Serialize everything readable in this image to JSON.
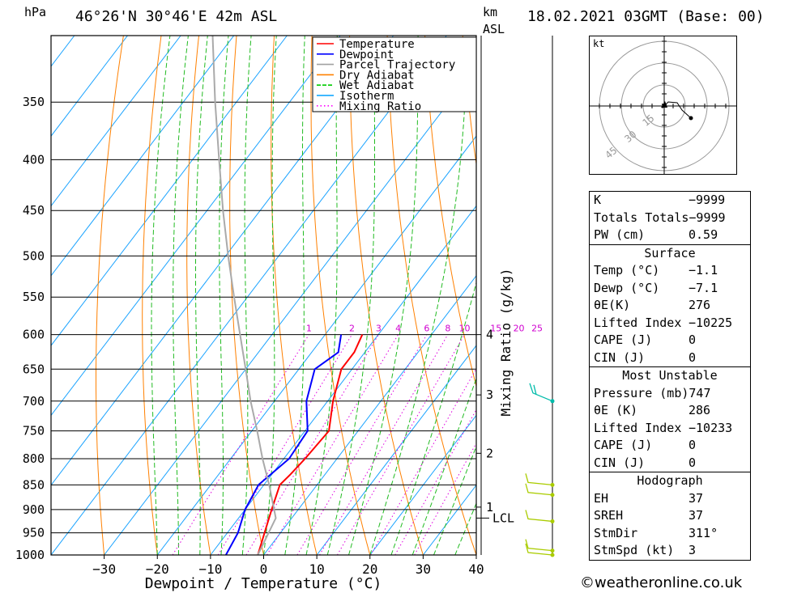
{
  "header": {
    "location": "46°26'N  30°46'E  42m  ASL",
    "datetime": "18.02.2021  03GMT  (Base: 00)",
    "left_unit": "hPa",
    "km_label": "km",
    "asl_label": "ASL"
  },
  "chart_data": {
    "type": "line",
    "title": "",
    "xlabel": "Dewpoint / Temperature (°C)",
    "right_axis_label": "Mixing Ratio (g/kg)",
    "xlim": [
      -40,
      40
    ],
    "ylim": [
      1000,
      300
    ],
    "x_ticks": [
      -30,
      -20,
      -10,
      0,
      10,
      20,
      30,
      40
    ],
    "pressure_levels": [
      350,
      400,
      450,
      500,
      550,
      600,
      650,
      700,
      750,
      800,
      850,
      900,
      950,
      1000
    ],
    "km_ticks": [
      {
        "label": "4",
        "p": 600
      },
      {
        "label": "3",
        "p": 690
      },
      {
        "label": "2",
        "p": 790
      },
      {
        "label": "1",
        "p": 895
      }
    ],
    "lcl_label": "LCL",
    "lcl_pressure": 918,
    "mixing_ratio_labels": [
      "1",
      "2",
      "3",
      "4",
      "6",
      "8",
      "10",
      "15",
      "20",
      "25"
    ],
    "mixing_ratio_values": [
      1,
      2,
      3,
      4,
      6,
      8,
      10,
      15,
      20,
      25
    ],
    "legend": [
      {
        "name": "Temperature",
        "color": "#ff0000"
      },
      {
        "name": "Dewpoint",
        "color": "#0000ff"
      },
      {
        "name": "Parcel Trajectory",
        "color": "#a0a0a0"
      },
      {
        "name": "Dry Adiabat",
        "color": "#ff8000"
      },
      {
        "name": "Wet Adiabat",
        "color": "#00cc00"
      },
      {
        "name": "Isotherm",
        "color": "#00a0ff"
      },
      {
        "name": "Mixing Ratio",
        "color": "#ff00ff"
      }
    ],
    "series": [
      {
        "name": "Temperature",
        "points": [
          [
            1000,
            -1.1
          ],
          [
            950,
            -3
          ],
          [
            900,
            -5
          ],
          [
            850,
            -7
          ],
          [
            830,
            -6.5
          ],
          [
            800,
            -6
          ],
          [
            750,
            -5.5
          ],
          [
            700,
            -9
          ],
          [
            650,
            -12
          ],
          [
            625,
            -12
          ],
          [
            600,
            -13
          ]
        ]
      },
      {
        "name": "Dewpoint",
        "points": [
          [
            1000,
            -7.1
          ],
          [
            950,
            -8
          ],
          [
            900,
            -10
          ],
          [
            850,
            -11
          ],
          [
            800,
            -9
          ],
          [
            750,
            -9.5
          ],
          [
            700,
            -14
          ],
          [
            650,
            -17
          ],
          [
            625,
            -15
          ],
          [
            600,
            -17
          ]
        ]
      },
      {
        "name": "Parcel Trajectory",
        "points": [
          [
            1000,
            -1.1
          ],
          [
            918,
            -3
          ],
          [
            850,
            -9
          ],
          [
            800,
            -14
          ],
          [
            750,
            -19
          ],
          [
            700,
            -24.5
          ],
          [
            650,
            -30
          ],
          [
            600,
            -36
          ],
          [
            550,
            -42.5
          ],
          [
            500,
            -49.5
          ],
          [
            450,
            -57
          ],
          [
            400,
            -65
          ],
          [
            350,
            -74
          ],
          [
            300,
            -84
          ]
        ]
      }
    ],
    "wind_barbs": [
      {
        "p": 1000,
        "knots": 10
      },
      {
        "p": 990,
        "knots": 10
      },
      {
        "p": 925,
        "knots": 10
      },
      {
        "p": 870,
        "knots": 10
      },
      {
        "p": 850,
        "knots": 10
      },
      {
        "p": 700,
        "knots": 10
      }
    ]
  },
  "hodograph": {
    "unit_label": "kt",
    "ring_labels": [
      "15",
      "30",
      "45"
    ]
  },
  "table": {
    "top": [
      {
        "label": "K",
        "value": "-9999"
      },
      {
        "label": "Totals Totals",
        "value": "-9999"
      },
      {
        "label": "PW (cm)",
        "value": "0.59"
      }
    ],
    "surface": {
      "title": "Surface",
      "rows": [
        {
          "label": "Temp (°C)",
          "value": "-1.1"
        },
        {
          "label": "Dewp (°C)",
          "value": "-7.1"
        },
        {
          "label": "θE(K)",
          "value": "276"
        },
        {
          "label": "Lifted Index",
          "value": "-10225"
        },
        {
          "label": "CAPE (J)",
          "value": "0"
        },
        {
          "label": "CIN (J)",
          "value": "0"
        }
      ]
    },
    "most_unstable": {
      "title": "Most Unstable",
      "rows": [
        {
          "label": "Pressure (mb)",
          "value": "747"
        },
        {
          "label": "θE (K)",
          "value": "286"
        },
        {
          "label": "Lifted Index",
          "value": "-10233"
        },
        {
          "label": "CAPE (J)",
          "value": "0"
        },
        {
          "label": "CIN (J)",
          "value": "0"
        }
      ]
    },
    "hodograph": {
      "title": "Hodograph",
      "rows": [
        {
          "label": "EH",
          "value": "37"
        },
        {
          "label": "SREH",
          "value": "37"
        },
        {
          "label": "StmDir",
          "value": "311°"
        },
        {
          "label": "StmSpd (kt)",
          "value": "3"
        }
      ]
    }
  },
  "credit": "©weatheronline.co.uk"
}
